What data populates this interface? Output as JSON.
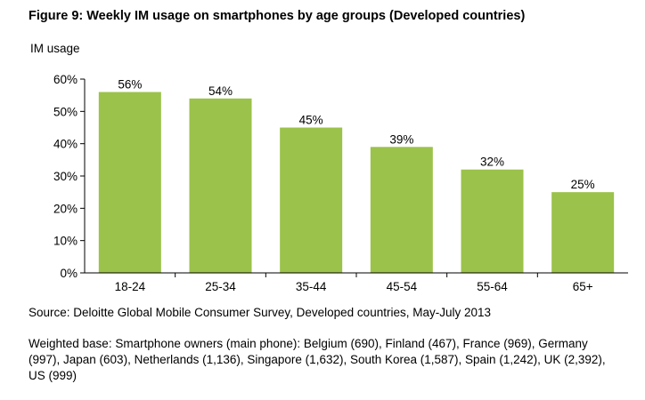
{
  "figure": {
    "title": "Figure 9: Weekly IM usage on smartphones by age groups (Developed countries)",
    "source": "Source: Deloitte Global Mobile Consumer Survey, Developed countries, May-July 2013",
    "weighted_base": "Weighted base: Smartphone owners (main phone): Belgium (690), Finland (467), France (969), Germany (997), Japan (603), Netherlands (1,136), Singapore (1,632), South Korea (1,587), Spain (1,242), UK (2,392), US (999)"
  },
  "colors": {
    "bar": "#9bc24a",
    "axis": "#000000",
    "text": "#000000"
  },
  "chart_data": {
    "type": "bar",
    "title": "Figure 9: Weekly IM usage on smartphones by age groups (Developed countries)",
    "xlabel": "",
    "ylabel": "IM usage",
    "categories": [
      "18-24",
      "25-34",
      "35-44",
      "45-54",
      "55-64",
      "65+"
    ],
    "values": [
      56,
      54,
      45,
      39,
      32,
      25
    ],
    "data_labels": [
      "56%",
      "54%",
      "45%",
      "39%",
      "32%",
      "25%"
    ],
    "ylim": [
      0,
      60
    ],
    "yticks": [
      0,
      10,
      20,
      30,
      40,
      50,
      60
    ],
    "ytick_labels": [
      "0%",
      "10%",
      "20%",
      "30%",
      "40%",
      "50%",
      "60%"
    ],
    "grid": false,
    "legend": "none"
  }
}
